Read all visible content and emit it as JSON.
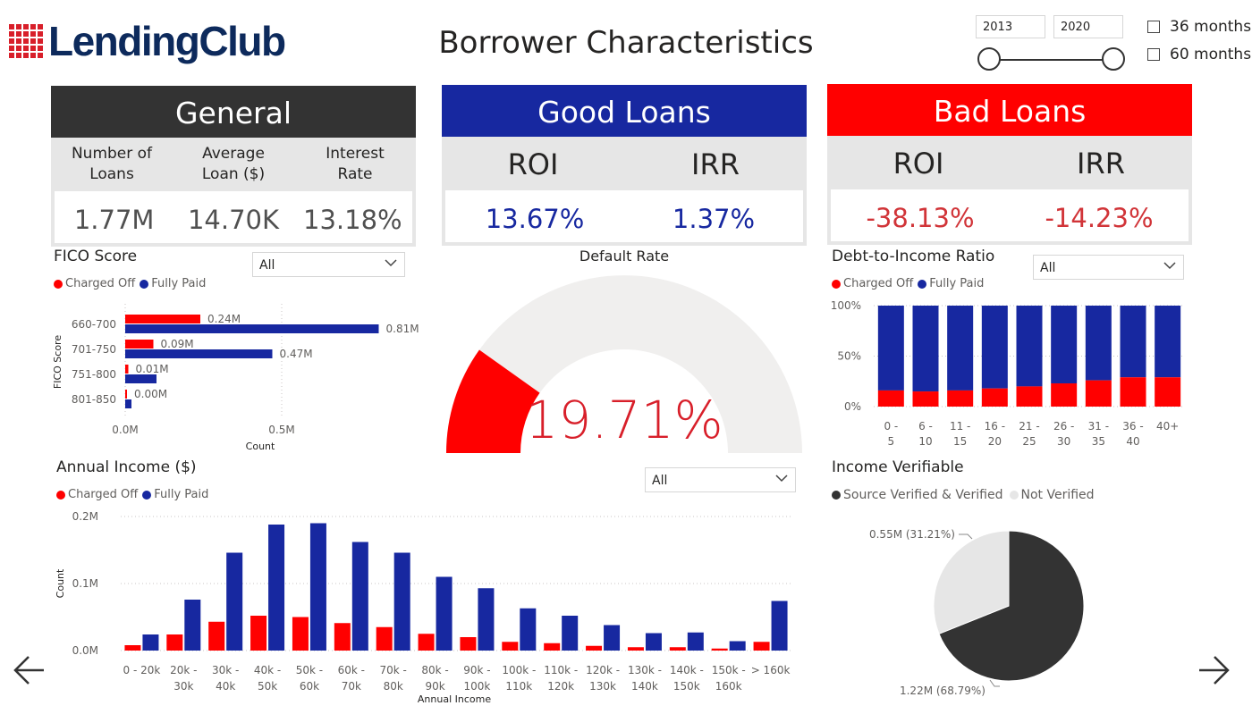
{
  "header": {
    "logo_text": "LendingClub",
    "title": "Borrower Characteristics",
    "date_start": "2013",
    "date_end": "2020",
    "slider_range": [
      2013,
      2020
    ],
    "terms": [
      {
        "label": "36 months",
        "checked": false
      },
      {
        "label": "60 months",
        "checked": false
      }
    ]
  },
  "colors": {
    "charged_off": "#ff0000",
    "fully_paid": "#1728a0",
    "general_header": "#333333",
    "good_header": "#1728a0",
    "bad_header": "#ff0000",
    "verified": "#333333",
    "not_verified": "#e6e6e6"
  },
  "general": {
    "title": "General",
    "cols": [
      "Number of\nLoans",
      "Average\nLoan ($)",
      "Interest\nRate"
    ],
    "values": [
      "1.77M",
      "14.70K",
      "13.18%"
    ]
  },
  "good_loans": {
    "title": "Good Loans",
    "cols": [
      "ROI",
      "IRR"
    ],
    "values": [
      "13.67%",
      "1.37%"
    ]
  },
  "bad_loans": {
    "title": "Bad Loans",
    "cols": [
      "ROI",
      "IRR"
    ],
    "values": [
      "-38.13%",
      "-14.23%"
    ]
  },
  "fico": {
    "title": "FICO Score",
    "dropdown": "All",
    "legend": [
      "Charged Off",
      "Fully Paid"
    ]
  },
  "default_rate": {
    "title": "Default Rate",
    "value_label": "19.71%",
    "value": 19.71,
    "max": 100
  },
  "dti": {
    "title": "Debt-to-Income Ratio",
    "dropdown": "All",
    "legend": [
      "Charged Off",
      "Fully Paid"
    ]
  },
  "annual_income": {
    "title": "Annual Income ($)",
    "dropdown": "All",
    "legend": [
      "Charged Off",
      "Fully Paid"
    ]
  },
  "income_verifiable": {
    "title": "Income Verifiable",
    "legend": [
      "Source Verified & Verified",
      "Not Verified"
    ]
  },
  "chart_data": [
    {
      "id": "fico",
      "type": "bar",
      "orientation": "horizontal",
      "categories": [
        "660-700",
        "701-750",
        "751-800",
        "801-850"
      ],
      "series": [
        {
          "name": "Charged Off",
          "values": [
            0.24,
            0.09,
            0.01,
            0.0
          ],
          "labels": [
            "0.24M",
            "0.09M",
            "0.01M",
            "0.00M"
          ]
        },
        {
          "name": "Fully Paid",
          "values": [
            0.81,
            0.47,
            0.1,
            0.02
          ],
          "labels": [
            "0.81M",
            "0.47M",
            "",
            ""
          ]
        }
      ],
      "xlabel": "Count",
      "ylabel": "FICO Score",
      "xticks": [
        "0.0M",
        "0.5M"
      ],
      "xlim": [
        0,
        0.9
      ]
    },
    {
      "id": "default_rate",
      "type": "gauge",
      "value": 19.71,
      "min": 0,
      "max": 100
    },
    {
      "id": "dti",
      "type": "bar",
      "stacked": "percent",
      "categories": [
        "0 - 5",
        "6 - 10",
        "11 - 15",
        "16 - 20",
        "21 - 25",
        "26 - 30",
        "31 - 35",
        "36 - 40",
        "40+"
      ],
      "series": [
        {
          "name": "Charged Off",
          "values": [
            16,
            15,
            16,
            18,
            20,
            23,
            26,
            29,
            29
          ]
        },
        {
          "name": "Fully Paid",
          "values": [
            84,
            85,
            84,
            82,
            80,
            77,
            74,
            71,
            71
          ]
        }
      ],
      "yticks": [
        "0%",
        "50%",
        "100%"
      ],
      "ylim": [
        0,
        100
      ]
    },
    {
      "id": "annual_income",
      "type": "bar",
      "categories": [
        "0 - 20k",
        "20k - 30k",
        "30k - 40k",
        "40k - 50k",
        "50k - 60k",
        "60k - 70k",
        "70k - 80k",
        "80k - 90k",
        "90k - 100k",
        "100k - 110k",
        "110k - 120k",
        "120k - 130k",
        "130k - 140k",
        "140k - 150k",
        "150k - 160k",
        "> 160k"
      ],
      "category_lines": [
        [
          "0 - 20k"
        ],
        [
          "20k -",
          "30k"
        ],
        [
          "30k -",
          "40k"
        ],
        [
          "40k -",
          "50k"
        ],
        [
          "50k -",
          "60k"
        ],
        [
          "60k -",
          "70k"
        ],
        [
          "70k -",
          "80k"
        ],
        [
          "80k -",
          "90k"
        ],
        [
          "90k -",
          "100k"
        ],
        [
          "100k -",
          "110k"
        ],
        [
          "110k -",
          "120k"
        ],
        [
          "120k -",
          "130k"
        ],
        [
          "130k -",
          "140k"
        ],
        [
          "140k -",
          "150k"
        ],
        [
          "150k -",
          "160k"
        ],
        [
          "> 160k"
        ]
      ],
      "series": [
        {
          "name": "Charged Off",
          "values": [
            0.008,
            0.024,
            0.043,
            0.052,
            0.05,
            0.041,
            0.035,
            0.025,
            0.02,
            0.013,
            0.011,
            0.007,
            0.005,
            0.005,
            0.003,
            0.013
          ]
        },
        {
          "name": "Fully Paid",
          "values": [
            0.024,
            0.076,
            0.146,
            0.188,
            0.19,
            0.162,
            0.146,
            0.11,
            0.093,
            0.063,
            0.052,
            0.038,
            0.026,
            0.027,
            0.014,
            0.074
          ]
        }
      ],
      "xlabel": "Annual Income",
      "ylabel": "Count",
      "yticks": [
        "0.0M",
        "0.1M",
        "0.2M"
      ],
      "ylim": [
        0,
        0.2
      ]
    },
    {
      "id": "income_verifiable",
      "type": "pie",
      "categories": [
        "Source Verified & Verified",
        "Not Verified"
      ],
      "values": [
        1.22,
        0.55
      ],
      "labels": [
        "1.22M (68.79%)",
        "0.55M (31.21%)"
      ],
      "percent": [
        68.79,
        31.21
      ]
    }
  ]
}
